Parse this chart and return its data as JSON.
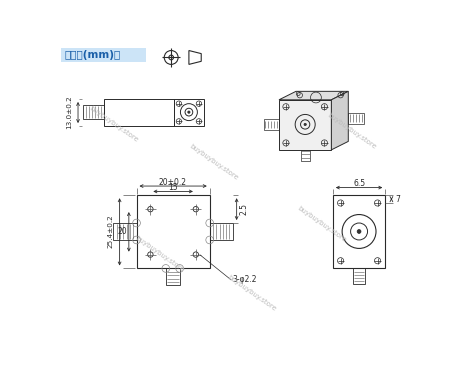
{
  "title": "外形图(mm)：",
  "title_color": "#1a5fa8",
  "title_bg": "#cce4f7",
  "bg_color": "#ffffff",
  "watermark": "buybuybuy.store",
  "line_color": "#2a2a2a",
  "dim_color": "#2a2a2a",
  "annotations": {
    "top_view_h": "13.0±0.2",
    "front_width": "20±0.2",
    "front_inner_w": "15",
    "front_height": "25.4±0.2",
    "front_inner_h": "20",
    "right_offset": "2.5",
    "side_width": "6.5",
    "side_offset": "7",
    "hole_label": "3-φ2.2"
  }
}
